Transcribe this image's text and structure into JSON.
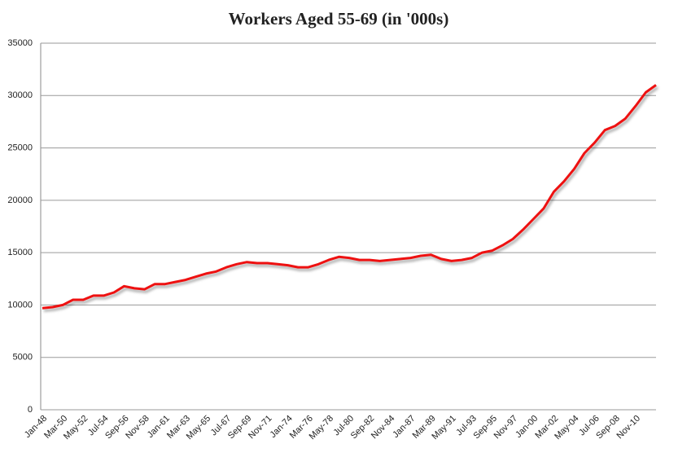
{
  "chart_data": {
    "type": "line",
    "title": "Workers Aged 55-69 (in '000s)",
    "categories": [
      "Jan-48",
      null,
      "Mar-50",
      null,
      "May-52",
      null,
      "Jul-54",
      null,
      "Sep-56",
      null,
      "Nov-58",
      null,
      "Jan-61",
      null,
      "Mar-63",
      null,
      "May-65",
      null,
      "Jul-67",
      null,
      "Sep-69",
      null,
      "Nov-71",
      null,
      "Jan-74",
      null,
      "Mar-76",
      null,
      "May-78",
      null,
      "Jul-80",
      null,
      "Sep-82",
      null,
      "Nov-84",
      null,
      "Jan-87",
      null,
      "Mar-89",
      null,
      "May-91",
      null,
      "Jul-93",
      null,
      "Sep-95",
      null,
      "Nov-97",
      null,
      "Jan-00",
      null,
      "Mar-02",
      null,
      "May-04",
      null,
      "Jul-06",
      null,
      "Sep-08",
      null,
      "Nov-10",
      null,
      null
    ],
    "values": [
      9700,
      9800,
      10000,
      10500,
      10500,
      10900,
      10900,
      11200,
      11800,
      11600,
      11500,
      12000,
      12000,
      12200,
      12400,
      12700,
      13000,
      13200,
      13600,
      13900,
      14100,
      14000,
      14000,
      13900,
      13800,
      13600,
      13600,
      13900,
      14300,
      14600,
      14500,
      14300,
      14300,
      14200,
      14300,
      14400,
      14500,
      14700,
      14800,
      14400,
      14200,
      14300,
      14500,
      15000,
      15200,
      15700,
      16300,
      17200,
      18200,
      19200,
      20800,
      21800,
      23000,
      24500,
      25500,
      26700,
      27100,
      27800,
      29000,
      30300,
      31000
    ],
    "color": "#ee1111",
    "ylim": [
      0,
      35000
    ],
    "yticks": [
      0,
      5000,
      10000,
      15000,
      20000,
      25000,
      30000,
      35000
    ],
    "grid": true
  }
}
